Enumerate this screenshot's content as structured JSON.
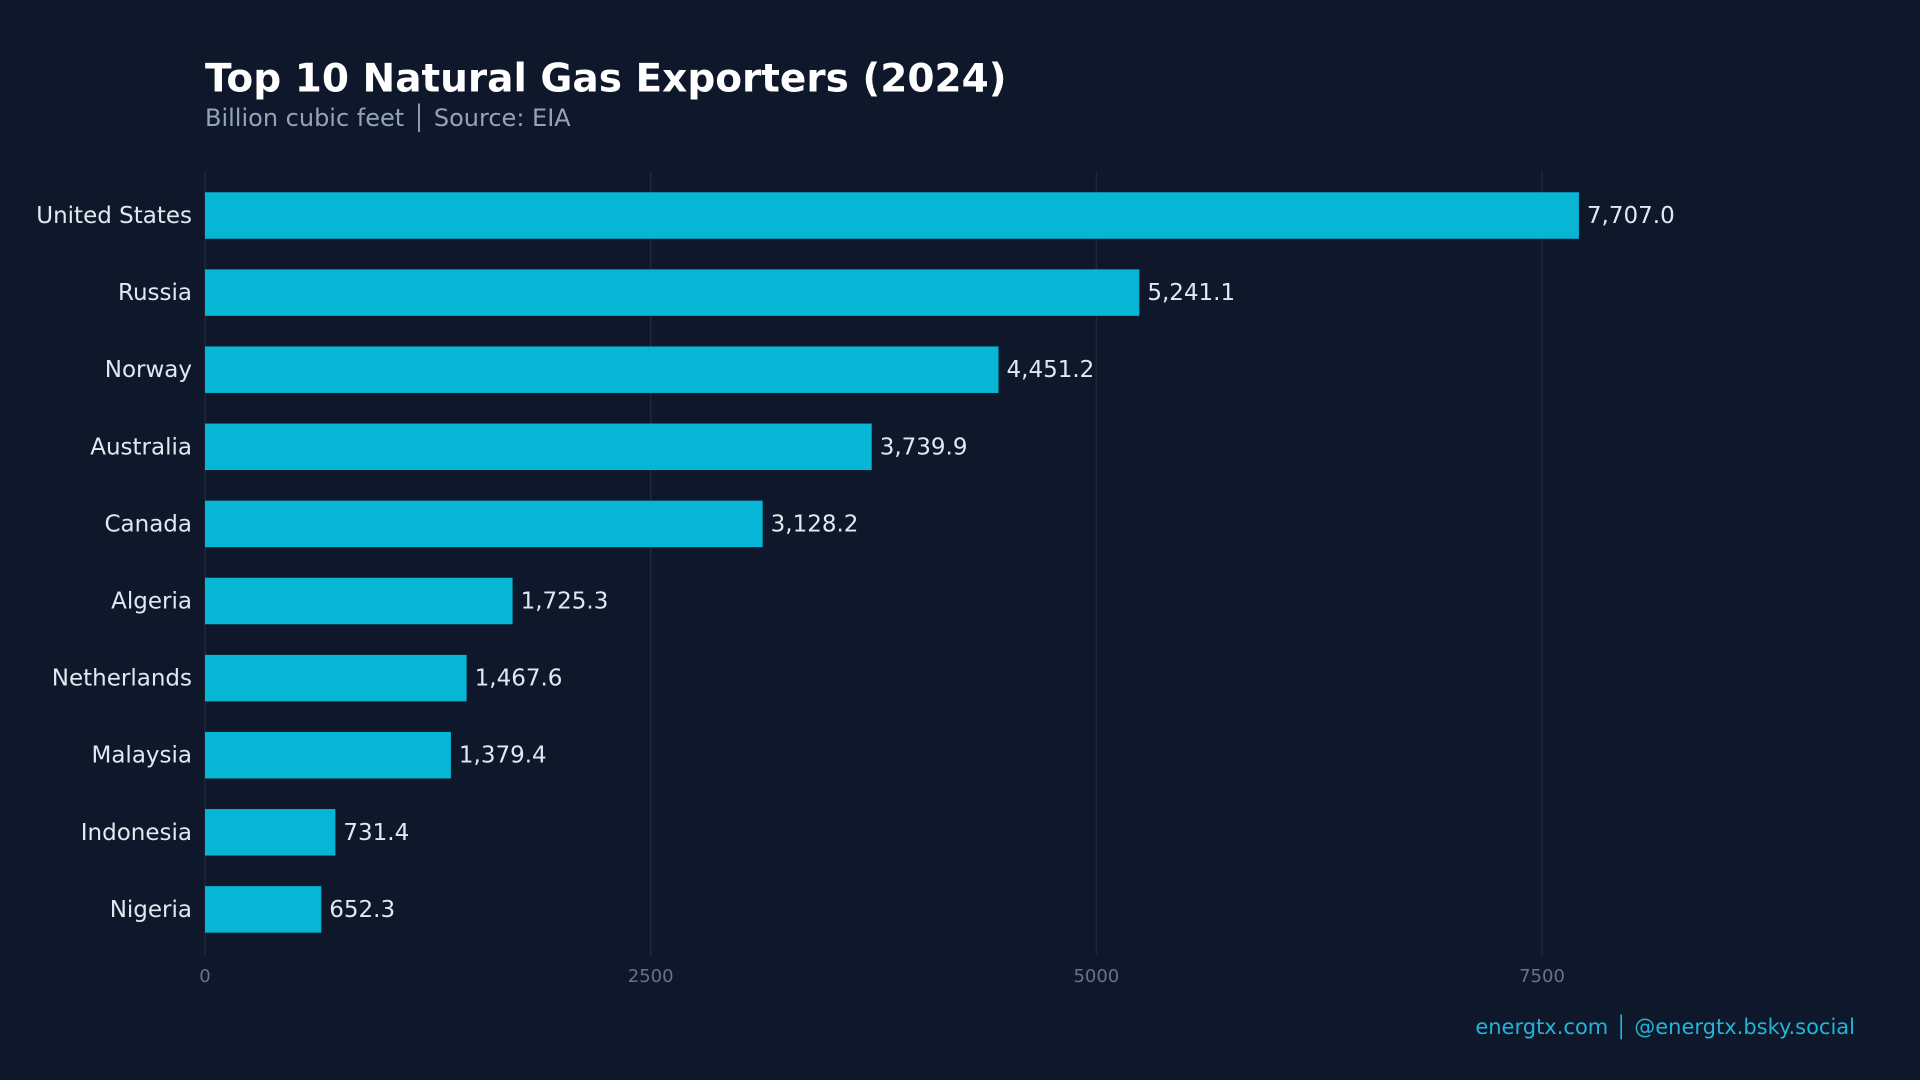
{
  "chart_data": {
    "type": "bar",
    "orientation": "horizontal",
    "title": "Top 10 Natural Gas Exporters (2024)",
    "subtitle": "Billion cubic feet │ Source: EIA",
    "categories": [
      "United States",
      "Russia",
      "Norway",
      "Australia",
      "Canada",
      "Algeria",
      "Netherlands",
      "Malaysia",
      "Indonesia",
      "Nigeria"
    ],
    "values": [
      7707.0,
      5241.1,
      4451.2,
      3739.9,
      3128.2,
      1725.3,
      1467.6,
      1379.4,
      731.4,
      652.3
    ],
    "value_labels": [
      "7,707.0",
      "5,241.1",
      "4,451.2",
      "3,739.9",
      "3,128.2",
      "1,725.3",
      "1,467.6",
      "1,379.4",
      "731.4",
      "652.3"
    ],
    "color": "#06b6d4",
    "xlim": [
      0,
      9250
    ],
    "xticks": [
      0,
      2500,
      5000,
      7500
    ],
    "grid": true,
    "footer": "energtx.com │ @energtx.bsky.social"
  }
}
